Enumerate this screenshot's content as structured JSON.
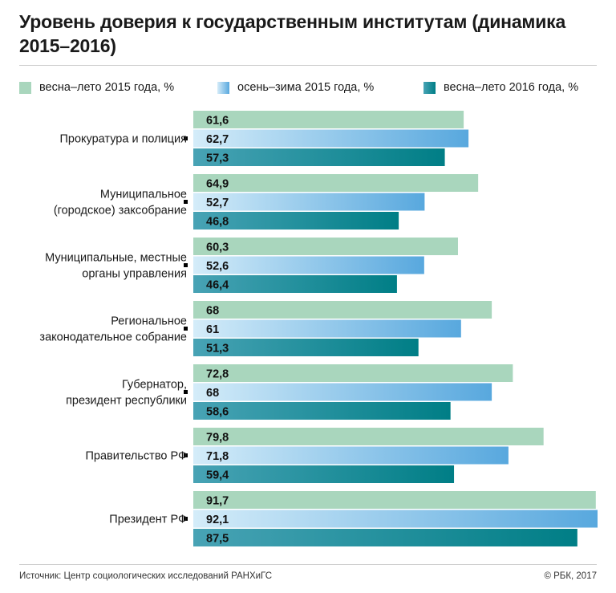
{
  "title": "Уровень доверия к государственным институтам (динамика 2015–2016)",
  "source": "Источник:  Центр социологических исследований РАНХиГС",
  "copyright": "© РБК, 2017",
  "colors": {
    "series1": "#a9d6bd",
    "series2_start": "#d4ecf9",
    "series2_end": "#58a8de",
    "series3_start": "#48a3b5",
    "series3_end": "#007e86"
  },
  "chart_data": {
    "type": "bar",
    "orientation": "horizontal",
    "legend_position": "top",
    "grid": false,
    "xlim": [
      0,
      92.1
    ],
    "categories": [
      [
        "Прокуратура и полиция"
      ],
      [
        "Муниципальное",
        "(городское) заксобрание"
      ],
      [
        "Муниципальные, местные",
        "органы управления"
      ],
      [
        "Региональное",
        "законодательное собрание"
      ],
      [
        "Губернатор,",
        "президент республики"
      ],
      [
        "Правительство РФ"
      ],
      [
        "Президент РФ"
      ]
    ],
    "series": [
      {
        "name": "весна–лето 2015 года, %",
        "values": [
          61.6,
          64.9,
          60.3,
          68,
          72.8,
          79.8,
          91.7
        ],
        "labels": [
          "61,6",
          "64,9",
          "60,3",
          "68",
          "72,8",
          "79,8",
          "91,7"
        ]
      },
      {
        "name": "осень–зима 2015 года, %",
        "values": [
          62.7,
          52.7,
          52.6,
          61,
          68,
          71.8,
          92.1
        ],
        "labels": [
          "62,7",
          "52,7",
          "52,6",
          "61",
          "68",
          "71,8",
          "92,1"
        ]
      },
      {
        "name": "весна–лето 2016 года, %",
        "values": [
          57.3,
          46.8,
          46.4,
          51.3,
          58.6,
          59.4,
          87.5
        ],
        "labels": [
          "57,3",
          "46,8",
          "46,4",
          "51,3",
          "58,6",
          "59,4",
          "87,5"
        ]
      }
    ]
  }
}
